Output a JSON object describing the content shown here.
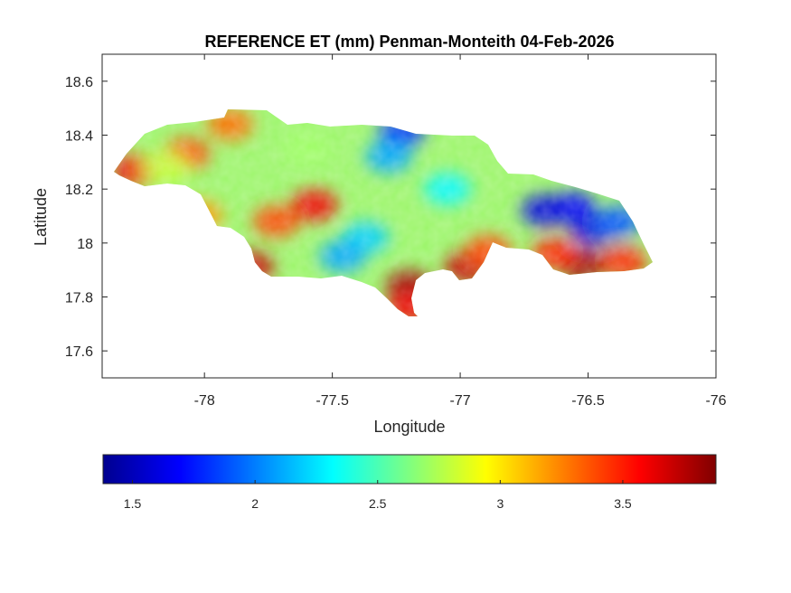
{
  "title": "REFERENCE ET (mm) Penman-Monteith 04-Feb-2026",
  "map": {
    "xlabel": "Longitude",
    "ylabel": "Latitude",
    "xlim": [
      -78.4,
      -76
    ],
    "ylim": [
      17.5,
      18.7
    ],
    "xticks": [
      -78,
      -77.5,
      -77,
      -76.5,
      -76
    ],
    "xtick_labels": [
      "-78",
      "-77.5",
      "-77",
      "-76.5",
      "-76"
    ],
    "yticks": [
      17.6,
      17.8,
      18,
      18.2,
      18.4,
      18.6
    ],
    "ytick_labels": [
      "17.6",
      "17.8",
      "18",
      "18.2",
      "18.4",
      "18.6"
    ],
    "region": "Jamaica",
    "colormap": "jet",
    "hotspots": [
      {
        "lon": -78.27,
        "lat": 18.27,
        "value": 3.6
      },
      {
        "lon": -78.07,
        "lat": 18.33,
        "value": 3.4
      },
      {
        "lon": -77.9,
        "lat": 18.44,
        "value": 3.3
      },
      {
        "lon": -77.72,
        "lat": 18.08,
        "value": 3.4
      },
      {
        "lon": -77.57,
        "lat": 18.14,
        "value": 3.6
      },
      {
        "lon": -78.02,
        "lat": 18.1,
        "value": 3.2
      },
      {
        "lon": -77.82,
        "lat": 17.91,
        "value": 3.7
      },
      {
        "lon": -77.2,
        "lat": 17.84,
        "value": 3.8
      },
      {
        "lon": -77.2,
        "lat": 17.76,
        "value": 3.6
      },
      {
        "lon": -76.97,
        "lat": 17.91,
        "value": 3.7
      },
      {
        "lon": -76.89,
        "lat": 17.97,
        "value": 3.4
      },
      {
        "lon": -76.52,
        "lat": 17.92,
        "value": 3.8
      },
      {
        "lon": -76.63,
        "lat": 17.96,
        "value": 3.5
      },
      {
        "lon": -76.36,
        "lat": 17.93,
        "value": 3.5
      },
      {
        "lon": -76.56,
        "lat": 18.13,
        "value": 1.7
      },
      {
        "lon": -76.67,
        "lat": 18.12,
        "value": 1.6
      },
      {
        "lon": -76.48,
        "lat": 18.05,
        "value": 1.6
      },
      {
        "lon": -76.38,
        "lat": 18.08,
        "value": 1.9
      },
      {
        "lon": -77.23,
        "lat": 18.41,
        "value": 1.8
      },
      {
        "lon": -77.28,
        "lat": 18.32,
        "value": 2.1
      },
      {
        "lon": -77.37,
        "lat": 18.02,
        "value": 2.2
      },
      {
        "lon": -77.46,
        "lat": 17.95,
        "value": 2.1
      },
      {
        "lon": -77.05,
        "lat": 18.2,
        "value": 2.3
      },
      {
        "lon": -77.6,
        "lat": 18.35,
        "value": 2.7
      },
      {
        "lon": -78.15,
        "lat": 18.28,
        "value": 2.8
      }
    ]
  },
  "colorbar": {
    "min": 1.38,
    "max": 3.88,
    "ticks": [
      1.5,
      2,
      2.5,
      3,
      3.5
    ],
    "tick_labels": [
      "1.5",
      "2",
      "2.5",
      "3",
      "3.5"
    ],
    "colors": [
      "#00008f",
      "#0000ff",
      "#00ffff",
      "#ffff00",
      "#ff0000",
      "#800000"
    ]
  }
}
